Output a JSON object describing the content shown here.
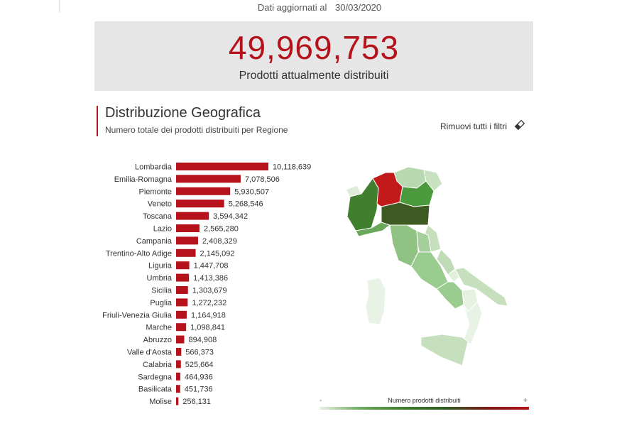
{
  "header": {
    "updated_label": "Dati aggiornati al",
    "updated_date": "30/03/2020"
  },
  "kpi": {
    "value": "49,969,753",
    "label": "Prodotti attualmente distribuiti"
  },
  "section": {
    "title": "Distribuzione Geografica",
    "subtitle": "Numero totale dei prodotti distribuiti per Regione",
    "clear_filters": "Rimuovi tutti i filtri"
  },
  "legend": {
    "title": "Numero prodotti distribuiti",
    "min_symbol": "-",
    "max_symbol": "+"
  },
  "colors": {
    "accent": "#b5121b",
    "kpi_bg": "#e6e6e6",
    "bar": "#b5121b"
  },
  "icons": {
    "clear_filters": "eraser-icon"
  },
  "chart_data": {
    "type": "bar",
    "orientation": "horizontal",
    "title": "",
    "xlabel": "",
    "ylabel": "",
    "xlim": [
      0,
      10118639
    ],
    "categories": [
      "Lombardia",
      "Emilia-Romagna",
      "Piemonte",
      "Veneto",
      "Toscana",
      "Lazio",
      "Campania",
      "Trentino-Alto Adige",
      "Liguria",
      "Umbria",
      "Sicilia",
      "Puglia",
      "Friuli-Venezia Giulia",
      "Marche",
      "Abruzzo",
      "Valle d'Aosta",
      "Calabria",
      "Sardegna",
      "Basilicata",
      "Molise"
    ],
    "values": [
      10118639,
      7078506,
      5930507,
      5268546,
      3594342,
      2565280,
      2408329,
      2145092,
      1447708,
      1413386,
      1303679,
      1272232,
      1164918,
      1098841,
      894908,
      566373,
      525664,
      464936,
      451736,
      256131
    ],
    "value_labels": [
      "10,118,639",
      "7,078,506",
      "5,930,507",
      "5,268,546",
      "3,594,342",
      "2,565,280",
      "2,408,329",
      "2,145,092",
      "1,447,708",
      "1,413,386",
      "1,303,679",
      "1,272,232",
      "1,164,918",
      "1,098,841",
      "894,908",
      "566,373",
      "525,664",
      "464,936",
      "451,736",
      "256,131"
    ]
  }
}
